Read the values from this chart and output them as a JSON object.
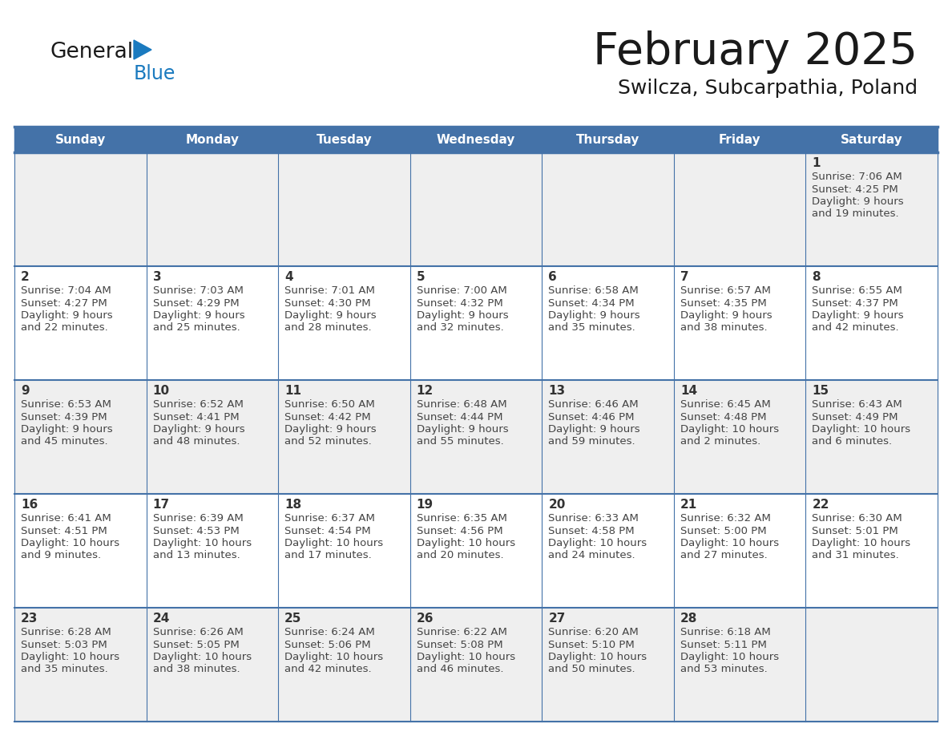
{
  "title": "February 2025",
  "subtitle": "Swilcza, Subcarpathia, Poland",
  "header_bg_color": "#4472a8",
  "header_text_color": "#ffffff",
  "day_names": [
    "Sunday",
    "Monday",
    "Tuesday",
    "Wednesday",
    "Thursday",
    "Friday",
    "Saturday"
  ],
  "cell_bg_color_odd": "#efefef",
  "cell_bg_color_even": "#ffffff",
  "border_color": "#4472a8",
  "text_color": "#444444",
  "day_number_color": "#333333",
  "logo_general_color": "#1a1a1a",
  "logo_blue_color": "#1a7abf",
  "days": [
    {
      "day": 1,
      "col": 6,
      "row": 0,
      "sunrise": "7:06 AM",
      "sunset": "4:25 PM",
      "daylight_h": "9 hours",
      "daylight_m": "19 minutes"
    },
    {
      "day": 2,
      "col": 0,
      "row": 1,
      "sunrise": "7:04 AM",
      "sunset": "4:27 PM",
      "daylight_h": "9 hours",
      "daylight_m": "22 minutes"
    },
    {
      "day": 3,
      "col": 1,
      "row": 1,
      "sunrise": "7:03 AM",
      "sunset": "4:29 PM",
      "daylight_h": "9 hours",
      "daylight_m": "25 minutes"
    },
    {
      "day": 4,
      "col": 2,
      "row": 1,
      "sunrise": "7:01 AM",
      "sunset": "4:30 PM",
      "daylight_h": "9 hours",
      "daylight_m": "28 minutes"
    },
    {
      "day": 5,
      "col": 3,
      "row": 1,
      "sunrise": "7:00 AM",
      "sunset": "4:32 PM",
      "daylight_h": "9 hours",
      "daylight_m": "32 minutes"
    },
    {
      "day": 6,
      "col": 4,
      "row": 1,
      "sunrise": "6:58 AM",
      "sunset": "4:34 PM",
      "daylight_h": "9 hours",
      "daylight_m": "35 minutes"
    },
    {
      "day": 7,
      "col": 5,
      "row": 1,
      "sunrise": "6:57 AM",
      "sunset": "4:35 PM",
      "daylight_h": "9 hours",
      "daylight_m": "38 minutes"
    },
    {
      "day": 8,
      "col": 6,
      "row": 1,
      "sunrise": "6:55 AM",
      "sunset": "4:37 PM",
      "daylight_h": "9 hours",
      "daylight_m": "42 minutes"
    },
    {
      "day": 9,
      "col": 0,
      "row": 2,
      "sunrise": "6:53 AM",
      "sunset": "4:39 PM",
      "daylight_h": "9 hours",
      "daylight_m": "45 minutes"
    },
    {
      "day": 10,
      "col": 1,
      "row": 2,
      "sunrise": "6:52 AM",
      "sunset": "4:41 PM",
      "daylight_h": "9 hours",
      "daylight_m": "48 minutes"
    },
    {
      "day": 11,
      "col": 2,
      "row": 2,
      "sunrise": "6:50 AM",
      "sunset": "4:42 PM",
      "daylight_h": "9 hours",
      "daylight_m": "52 minutes"
    },
    {
      "day": 12,
      "col": 3,
      "row": 2,
      "sunrise": "6:48 AM",
      "sunset": "4:44 PM",
      "daylight_h": "9 hours",
      "daylight_m": "55 minutes"
    },
    {
      "day": 13,
      "col": 4,
      "row": 2,
      "sunrise": "6:46 AM",
      "sunset": "4:46 PM",
      "daylight_h": "9 hours",
      "daylight_m": "59 minutes"
    },
    {
      "day": 14,
      "col": 5,
      "row": 2,
      "sunrise": "6:45 AM",
      "sunset": "4:48 PM",
      "daylight_h": "10 hours",
      "daylight_m": "2 minutes"
    },
    {
      "day": 15,
      "col": 6,
      "row": 2,
      "sunrise": "6:43 AM",
      "sunset": "4:49 PM",
      "daylight_h": "10 hours",
      "daylight_m": "6 minutes"
    },
    {
      "day": 16,
      "col": 0,
      "row": 3,
      "sunrise": "6:41 AM",
      "sunset": "4:51 PM",
      "daylight_h": "10 hours",
      "daylight_m": "9 minutes"
    },
    {
      "day": 17,
      "col": 1,
      "row": 3,
      "sunrise": "6:39 AM",
      "sunset": "4:53 PM",
      "daylight_h": "10 hours",
      "daylight_m": "13 minutes"
    },
    {
      "day": 18,
      "col": 2,
      "row": 3,
      "sunrise": "6:37 AM",
      "sunset": "4:54 PM",
      "daylight_h": "10 hours",
      "daylight_m": "17 minutes"
    },
    {
      "day": 19,
      "col": 3,
      "row": 3,
      "sunrise": "6:35 AM",
      "sunset": "4:56 PM",
      "daylight_h": "10 hours",
      "daylight_m": "20 minutes"
    },
    {
      "day": 20,
      "col": 4,
      "row": 3,
      "sunrise": "6:33 AM",
      "sunset": "4:58 PM",
      "daylight_h": "10 hours",
      "daylight_m": "24 minutes"
    },
    {
      "day": 21,
      "col": 5,
      "row": 3,
      "sunrise": "6:32 AM",
      "sunset": "5:00 PM",
      "daylight_h": "10 hours",
      "daylight_m": "27 minutes"
    },
    {
      "day": 22,
      "col": 6,
      "row": 3,
      "sunrise": "6:30 AM",
      "sunset": "5:01 PM",
      "daylight_h": "10 hours",
      "daylight_m": "31 minutes"
    },
    {
      "day": 23,
      "col": 0,
      "row": 4,
      "sunrise": "6:28 AM",
      "sunset": "5:03 PM",
      "daylight_h": "10 hours",
      "daylight_m": "35 minutes"
    },
    {
      "day": 24,
      "col": 1,
      "row": 4,
      "sunrise": "6:26 AM",
      "sunset": "5:05 PM",
      "daylight_h": "10 hours",
      "daylight_m": "38 minutes"
    },
    {
      "day": 25,
      "col": 2,
      "row": 4,
      "sunrise": "6:24 AM",
      "sunset": "5:06 PM",
      "daylight_h": "10 hours",
      "daylight_m": "42 minutes"
    },
    {
      "day": 26,
      "col": 3,
      "row": 4,
      "sunrise": "6:22 AM",
      "sunset": "5:08 PM",
      "daylight_h": "10 hours",
      "daylight_m": "46 minutes"
    },
    {
      "day": 27,
      "col": 4,
      "row": 4,
      "sunrise": "6:20 AM",
      "sunset": "5:10 PM",
      "daylight_h": "10 hours",
      "daylight_m": "50 minutes"
    },
    {
      "day": 28,
      "col": 5,
      "row": 4,
      "sunrise": "6:18 AM",
      "sunset": "5:11 PM",
      "daylight_h": "10 hours",
      "daylight_m": "53 minutes"
    }
  ]
}
